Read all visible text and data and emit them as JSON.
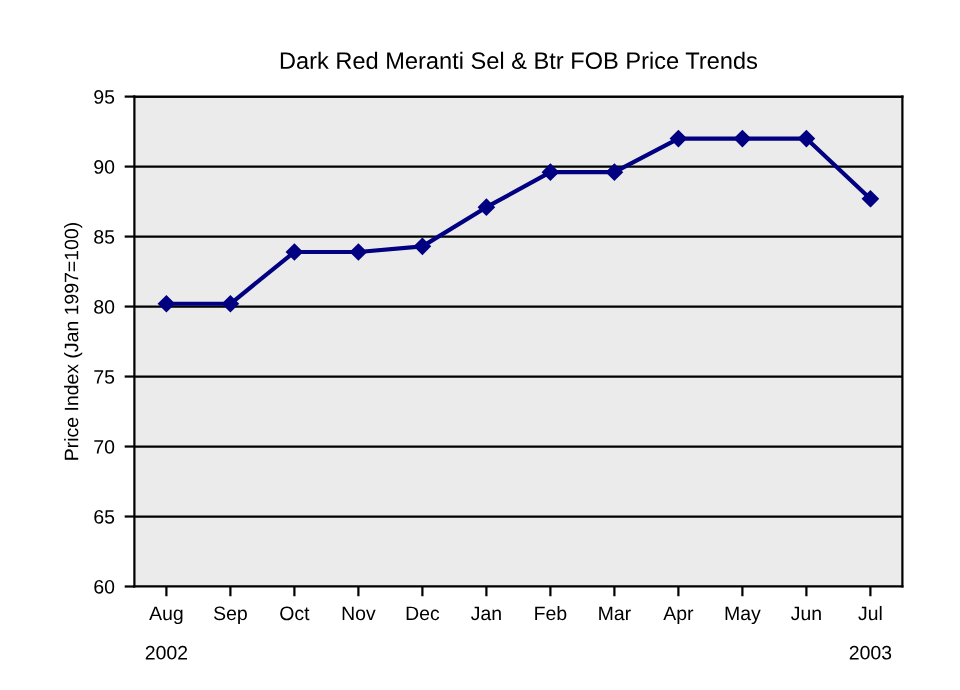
{
  "chart_data": {
    "type": "line",
    "title": "Dark Red Meranti Sel & Btr FOB Price Trends",
    "ylabel": "Price Index (Jan 1997=100)",
    "categories": [
      "Aug",
      "Sep",
      "Oct",
      "Nov",
      "Dec",
      "Jan",
      "Feb",
      "Mar",
      "Apr",
      "May",
      "Jun",
      "Jul"
    ],
    "series": [
      {
        "color": "#000080",
        "values": [
          80.2,
          80.2,
          83.9,
          83.9,
          84.3,
          87.1,
          89.6,
          89.6,
          92.0,
          92.0,
          92.0,
          87.7
        ]
      }
    ],
    "annotations": [
      "2002",
      "2003"
    ],
    "ylim": [
      60,
      95
    ],
    "yticks": [
      60,
      65,
      70,
      75,
      80,
      85,
      90,
      95
    ],
    "grid": "y",
    "marker": "diamond",
    "line_style": "solid"
  }
}
